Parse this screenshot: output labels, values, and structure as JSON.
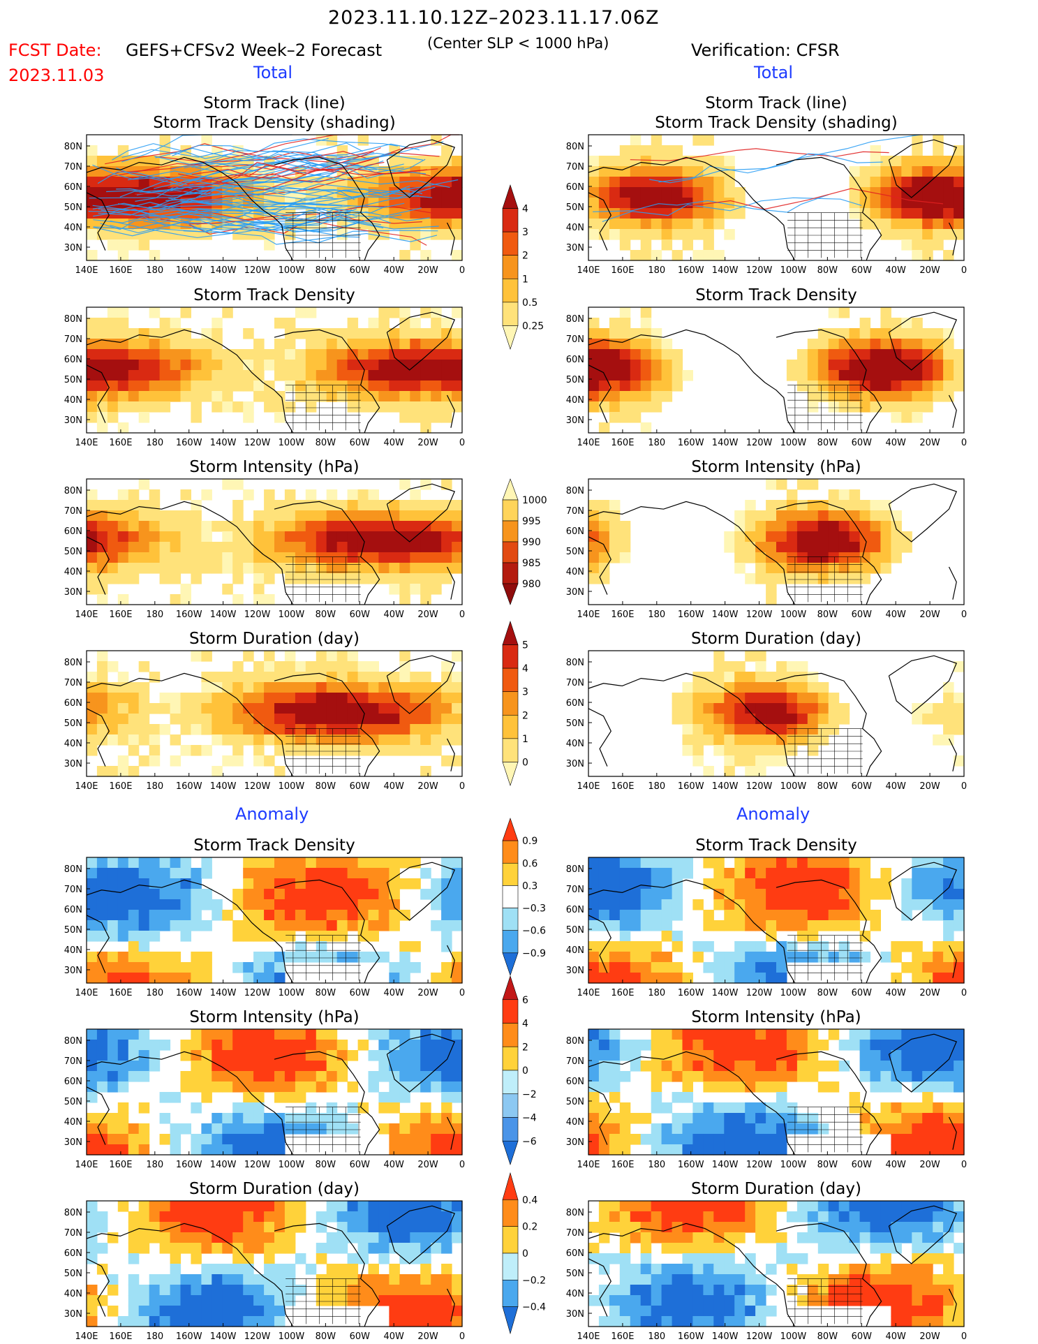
{
  "header": {
    "period": "2023.11.10.12Z–2023.11.17.06Z",
    "fcst_label": "FCST Date:",
    "fcst_date": "2023.11.03",
    "model": "GEFS+CFSv2 Week–2 Forecast",
    "criterion": "(Center SLP < 1000 hPa)",
    "verification": "Verification: CFSR"
  },
  "sections": {
    "total": "Total",
    "anomaly": "Anomaly"
  },
  "axes": {
    "lon_labels": [
      "140E",
      "160E",
      "180",
      "160W",
      "140W",
      "120W",
      "100W",
      "80W",
      "60W",
      "40W",
      "20W",
      "0"
    ],
    "lat_labels": [
      "80N",
      "70N",
      "60N",
      "50N",
      "40N",
      "30N"
    ]
  },
  "panels": [
    {
      "col": "left",
      "row": 0,
      "title": [
        "Storm Track (line)",
        "Storm Track Density (shading)"
      ]
    },
    {
      "col": "right",
      "row": 0,
      "title": [
        "Storm Track (line)",
        "Storm Track Density (shading)"
      ]
    },
    {
      "col": "left",
      "row": 1,
      "title": [
        "Storm Track Density"
      ]
    },
    {
      "col": "right",
      "row": 1,
      "title": [
        "Storm Track Density"
      ]
    },
    {
      "col": "left",
      "row": 2,
      "title": [
        "Storm Intensity (hPa)"
      ]
    },
    {
      "col": "right",
      "row": 2,
      "title": [
        "Storm Intensity (hPa)"
      ]
    },
    {
      "col": "left",
      "row": 3,
      "title": [
        "Storm Duration (day)"
      ]
    },
    {
      "col": "right",
      "row": 3,
      "title": [
        "Storm Duration (day)"
      ]
    },
    {
      "col": "left",
      "row": 4,
      "title": [
        "Storm Track Density"
      ]
    },
    {
      "col": "right",
      "row": 4,
      "title": [
        "Storm Track Density"
      ]
    },
    {
      "col": "left",
      "row": 5,
      "title": [
        "Storm Intensity (hPa)"
      ]
    },
    {
      "col": "right",
      "row": 5,
      "title": [
        "Storm Intensity (hPa)"
      ]
    },
    {
      "col": "left",
      "row": 6,
      "title": [
        "Storm Duration (day)"
      ]
    },
    {
      "col": "right",
      "row": 6,
      "title": [
        "Storm Duration (day)"
      ]
    }
  ],
  "colorbars": [
    {
      "name": "density-total",
      "labels": [
        "4",
        "3",
        "2",
        "1",
        "0.5",
        "0.25"
      ],
      "colors": [
        "#a50f0f",
        "#d92a12",
        "#f05a10",
        "#f7941d",
        "#ffc23a",
        "#ffe27a",
        "#fff6b5"
      ]
    },
    {
      "name": "intensity-total",
      "labels": [
        "1000",
        "995",
        "990",
        "985",
        "980"
      ],
      "colors": [
        "#fff6b5",
        "#ffd45a",
        "#f7941d",
        "#e24a12",
        "#b41b0f",
        "#8f0c0c"
      ]
    },
    {
      "name": "duration-total",
      "labels": [
        "5",
        "4",
        "3",
        "2",
        "1",
        "0"
      ],
      "colors": [
        "#a50f0f",
        "#d92a12",
        "#f05a10",
        "#f7941d",
        "#ffc23a",
        "#ffe27a",
        "#fff6b5"
      ]
    },
    {
      "name": "density-anom",
      "labels": [
        "0.9",
        "0.6",
        "0.3",
        "−0.3",
        "−0.6",
        "−0.9"
      ],
      "colors": [
        "#ff3c12",
        "#ff8c1a",
        "#ffd23a",
        "#ffffff",
        "#9fe0f5",
        "#4aa8ee",
        "#1e6fd8"
      ]
    },
    {
      "name": "intensity-anom",
      "labels": [
        "6",
        "4",
        "2",
        "0",
        "−2",
        "−4",
        "−6"
      ],
      "colors": [
        "#c21717",
        "#ff3c12",
        "#ff8c1a",
        "#ffd23a",
        "#bfeefa",
        "#8cc8f2",
        "#4a94e8",
        "#1e6fd8"
      ]
    },
    {
      "name": "duration-anom",
      "labels": [
        "0.4",
        "0.2",
        "0",
        "−0.2",
        "−0.4"
      ],
      "colors": [
        "#ff3c12",
        "#ff8c1a",
        "#ffd23a",
        "#bfeefa",
        "#4aa8ee",
        "#1e6fd8"
      ]
    }
  ],
  "chart_data": {
    "type": "heatmap",
    "domain": {
      "lon": [
        "140E",
        "0"
      ],
      "lat": [
        "25N",
        "85N"
      ]
    },
    "grid": false,
    "legend": "center vertical colorbars"
  }
}
